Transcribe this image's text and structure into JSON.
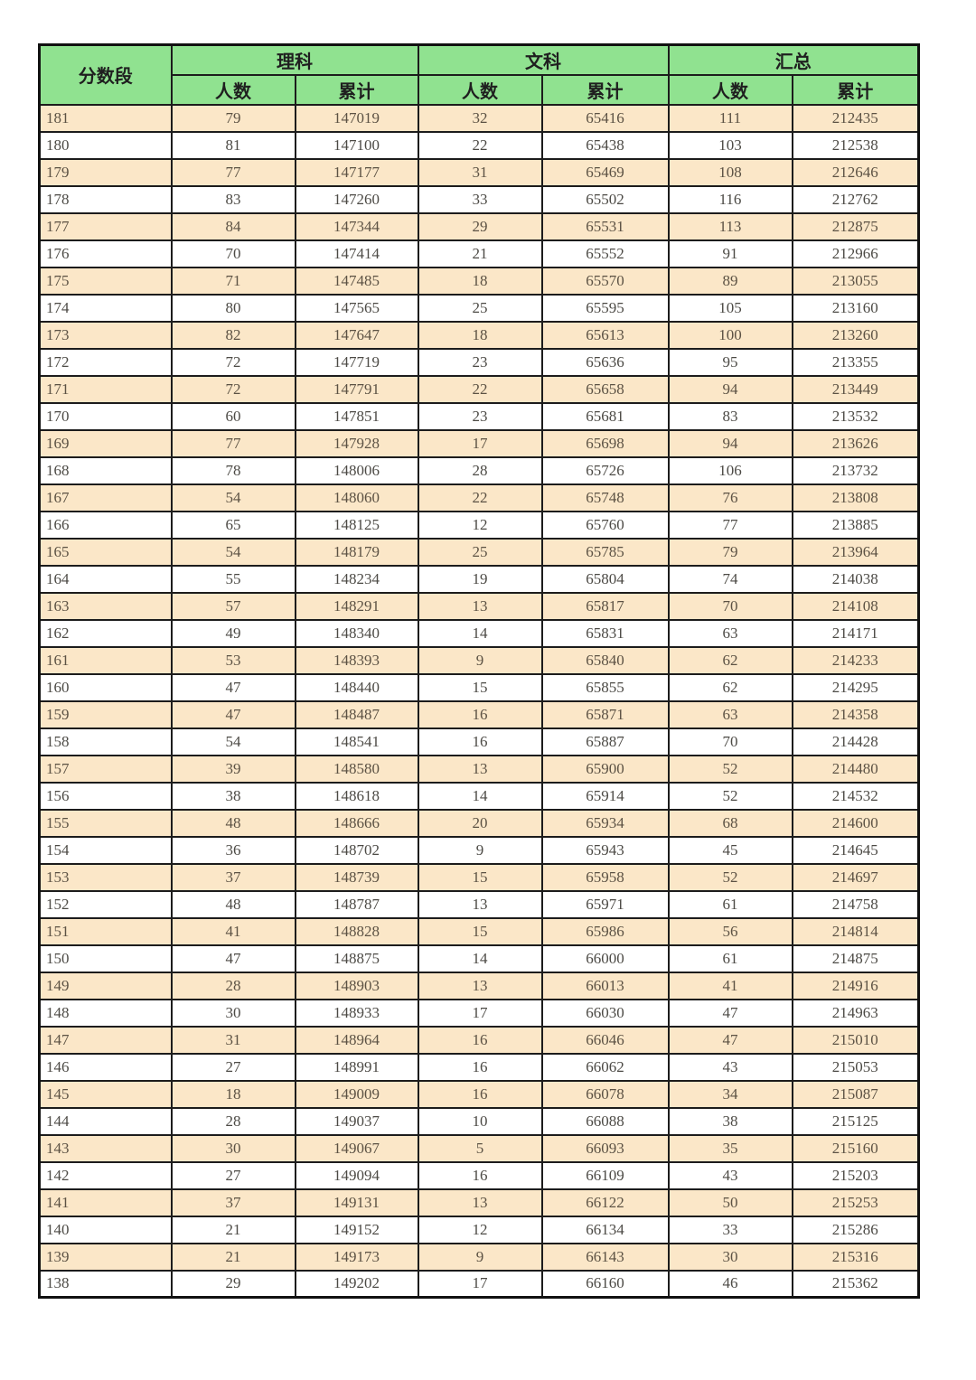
{
  "table": {
    "score_header": "分数段",
    "groups": [
      {
        "label": "理科",
        "sub": [
          "人数",
          "累计"
        ]
      },
      {
        "label": "文科",
        "sub": [
          "人数",
          "累计"
        ]
      },
      {
        "label": "汇总",
        "sub": [
          "人数",
          "累计"
        ]
      }
    ],
    "rows": [
      [
        181,
        79,
        147019,
        32,
        65416,
        111,
        212435
      ],
      [
        180,
        81,
        147100,
        22,
        65438,
        103,
        212538
      ],
      [
        179,
        77,
        147177,
        31,
        65469,
        108,
        212646
      ],
      [
        178,
        83,
        147260,
        33,
        65502,
        116,
        212762
      ],
      [
        177,
        84,
        147344,
        29,
        65531,
        113,
        212875
      ],
      [
        176,
        70,
        147414,
        21,
        65552,
        91,
        212966
      ],
      [
        175,
        71,
        147485,
        18,
        65570,
        89,
        213055
      ],
      [
        174,
        80,
        147565,
        25,
        65595,
        105,
        213160
      ],
      [
        173,
        82,
        147647,
        18,
        65613,
        100,
        213260
      ],
      [
        172,
        72,
        147719,
        23,
        65636,
        95,
        213355
      ],
      [
        171,
        72,
        147791,
        22,
        65658,
        94,
        213449
      ],
      [
        170,
        60,
        147851,
        23,
        65681,
        83,
        213532
      ],
      [
        169,
        77,
        147928,
        17,
        65698,
        94,
        213626
      ],
      [
        168,
        78,
        148006,
        28,
        65726,
        106,
        213732
      ],
      [
        167,
        54,
        148060,
        22,
        65748,
        76,
        213808
      ],
      [
        166,
        65,
        148125,
        12,
        65760,
        77,
        213885
      ],
      [
        165,
        54,
        148179,
        25,
        65785,
        79,
        213964
      ],
      [
        164,
        55,
        148234,
        19,
        65804,
        74,
        214038
      ],
      [
        163,
        57,
        148291,
        13,
        65817,
        70,
        214108
      ],
      [
        162,
        49,
        148340,
        14,
        65831,
        63,
        214171
      ],
      [
        161,
        53,
        148393,
        9,
        65840,
        62,
        214233
      ],
      [
        160,
        47,
        148440,
        15,
        65855,
        62,
        214295
      ],
      [
        159,
        47,
        148487,
        16,
        65871,
        63,
        214358
      ],
      [
        158,
        54,
        148541,
        16,
        65887,
        70,
        214428
      ],
      [
        157,
        39,
        148580,
        13,
        65900,
        52,
        214480
      ],
      [
        156,
        38,
        148618,
        14,
        65914,
        52,
        214532
      ],
      [
        155,
        48,
        148666,
        20,
        65934,
        68,
        214600
      ],
      [
        154,
        36,
        148702,
        9,
        65943,
        45,
        214645
      ],
      [
        153,
        37,
        148739,
        15,
        65958,
        52,
        214697
      ],
      [
        152,
        48,
        148787,
        13,
        65971,
        61,
        214758
      ],
      [
        151,
        41,
        148828,
        15,
        65986,
        56,
        214814
      ],
      [
        150,
        47,
        148875,
        14,
        66000,
        61,
        214875
      ],
      [
        149,
        28,
        148903,
        13,
        66013,
        41,
        214916
      ],
      [
        148,
        30,
        148933,
        17,
        66030,
        47,
        214963
      ],
      [
        147,
        31,
        148964,
        16,
        66046,
        47,
        215010
      ],
      [
        146,
        27,
        148991,
        16,
        66062,
        43,
        215053
      ],
      [
        145,
        18,
        149009,
        16,
        66078,
        34,
        215087
      ],
      [
        144,
        28,
        149037,
        10,
        66088,
        38,
        215125
      ],
      [
        143,
        30,
        149067,
        5,
        66093,
        35,
        215160
      ],
      [
        142,
        27,
        149094,
        16,
        66109,
        43,
        215203
      ],
      [
        141,
        37,
        149131,
        13,
        66122,
        50,
        215253
      ],
      [
        140,
        21,
        149152,
        12,
        66134,
        33,
        215286
      ],
      [
        139,
        21,
        149173,
        9,
        66143,
        30,
        215316
      ],
      [
        138,
        29,
        149202,
        17,
        66160,
        46,
        215362
      ]
    ]
  },
  "colors": {
    "header_green": "#90E290",
    "stripe_cream": "#FBE7C8",
    "border": "#1C1C1C",
    "data_text": "#4C4A45"
  }
}
